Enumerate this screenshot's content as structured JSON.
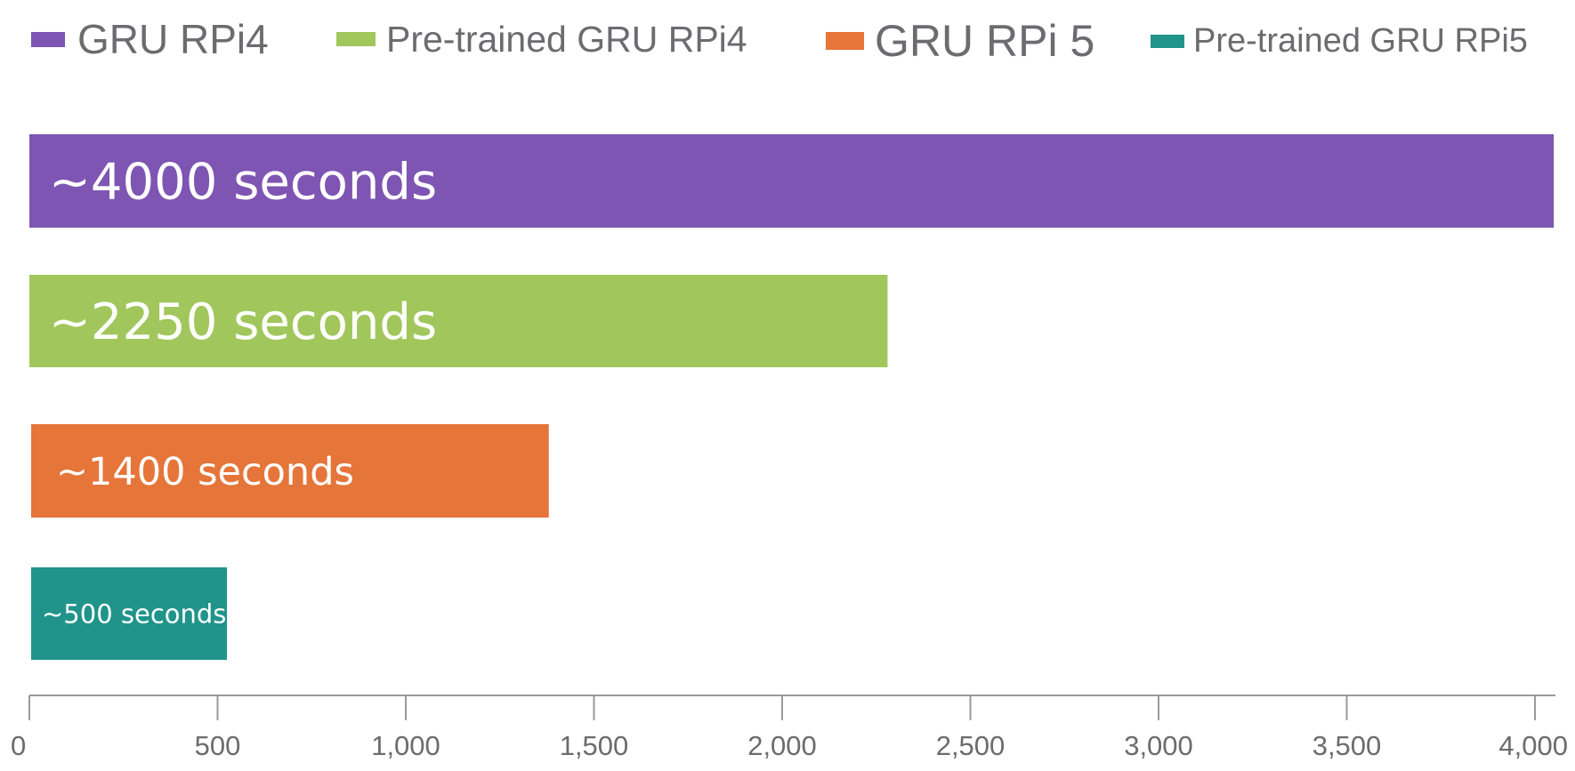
{
  "chart_data": {
    "type": "bar",
    "orientation": "horizontal",
    "title": "",
    "xlabel": "",
    "ylabel": "",
    "xlim": [
      0,
      4000
    ],
    "ticks": [
      0,
      500,
      1000,
      1500,
      2000,
      2500,
      3000,
      3500,
      4000
    ],
    "tick_labels": [
      "0",
      "500",
      "1,000",
      "1,500",
      "2,000",
      "2,500",
      "3,000",
      "3,500",
      "4,000"
    ],
    "grid": false,
    "legend_position": "top",
    "series": [
      {
        "name": "GRU RPi4",
        "value": 4050,
        "label": "~4000 seconds",
        "color": "#7e55b3"
      },
      {
        "name": "Pre-trained GRU RPi4",
        "value": 2280,
        "label": "~2250 seconds",
        "color": "#a1c75c"
      },
      {
        "name": "GRU RPi 5",
        "value": 1380,
        "label": "~1400 seconds",
        "color": "#e67539"
      },
      {
        "name": "Pre-trained GRU RPi5",
        "value": 525,
        "label": "~500 seconds",
        "color": "#20948b"
      }
    ]
  }
}
